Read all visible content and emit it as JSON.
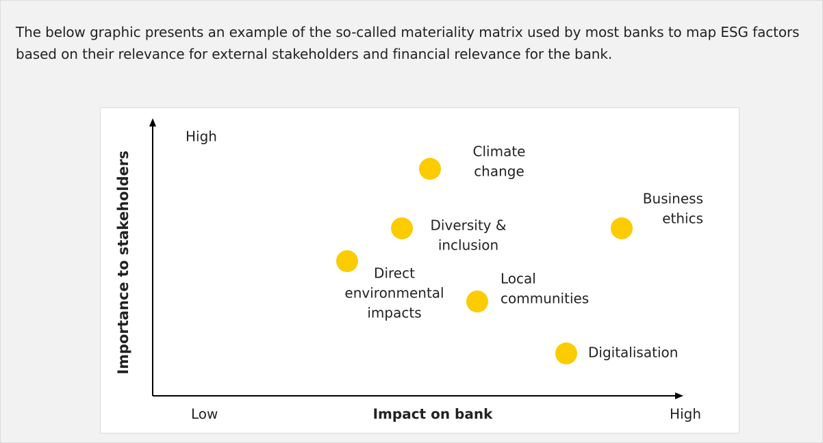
{
  "paragraph": "The below graphic presents an example of the so-called materiality matrix used by most banks to map ESG factors based on their relevance for external stakeholders and financial relevance for the bank.",
  "matrix": {
    "y_axis_label": "Importance to stakeholders",
    "x_axis_label": "Impact on bank",
    "y_high": "High",
    "x_low": "Low",
    "x_high": "High",
    "items": [
      {
        "lines": [
          "Climate",
          "change"
        ]
      },
      {
        "lines": [
          "Diversity &",
          "inclusion"
        ]
      },
      {
        "lines": [
          "Business",
          "ethics"
        ]
      },
      {
        "lines": [
          "Direct",
          "environmental",
          "impacts"
        ]
      },
      {
        "lines": [
          "Local",
          "communities"
        ]
      },
      {
        "lines": [
          "Digitalisation"
        ]
      }
    ]
  }
}
